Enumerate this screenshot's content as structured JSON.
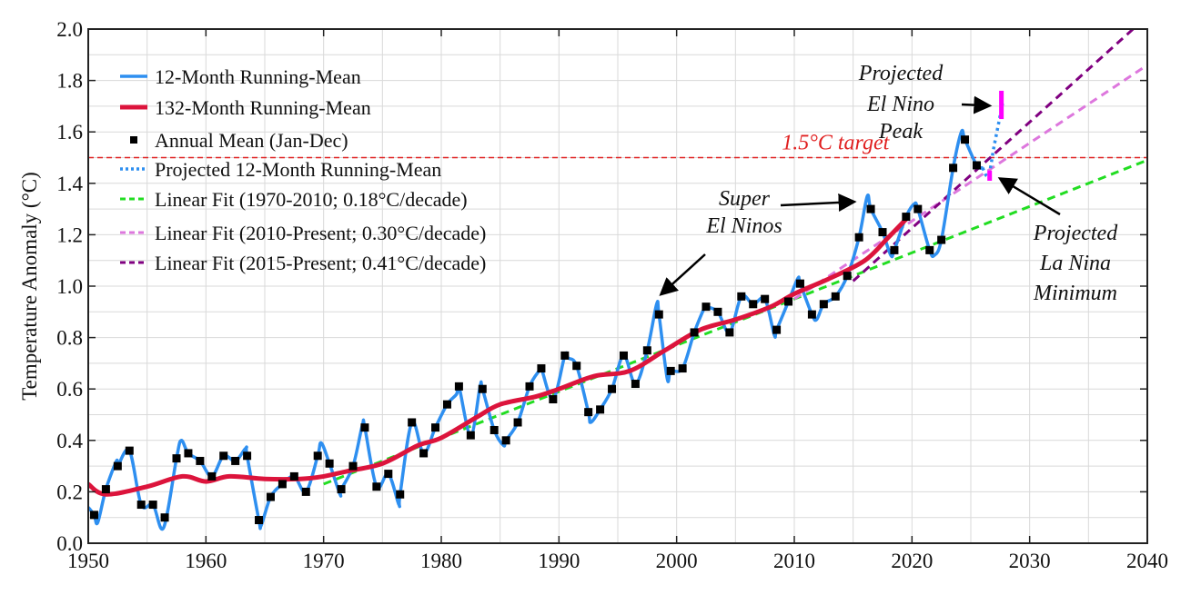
{
  "chart_data": {
    "type": "line",
    "title": "",
    "xlabel": "",
    "ylabel": "Temperature Anomaly (°C)",
    "xlim": [
      1950,
      2040
    ],
    "ylim": [
      0.0,
      2.0
    ],
    "xticks": [
      "1950",
      "1960",
      "1970",
      "1980",
      "1990",
      "2000",
      "2010",
      "2020",
      "2030",
      "2040"
    ],
    "yticks": [
      "0.0",
      "0.2",
      "0.4",
      "0.6",
      "0.8",
      "1.0",
      "1.2",
      "1.4",
      "1.6",
      "1.8",
      "2.0"
    ],
    "grid": true,
    "legend_placement": "top-left",
    "colors": {
      "running12": "#2e8ff0",
      "running132": "#dc143c",
      "annual": "#000000",
      "projected": "#2e8ff0",
      "fit1970": "#22dd22",
      "fit2010": "#dd77dd",
      "fit2015": "#800080",
      "target": "#e02020",
      "projection_bars": "#ff00ff"
    },
    "series": [
      {
        "name": "12-Month Running-Mean",
        "style": "solid",
        "x": [
          1950.0,
          1950.5,
          1950.8,
          1951.5,
          1952.4,
          1952.5,
          1953.5,
          1954.5,
          1955.5,
          1956.4,
          1957.5,
          1957.9,
          1958.5,
          1959.5,
          1960.5,
          1961.5,
          1962.5,
          1963.4,
          1963.5,
          1964.5,
          1964.7,
          1965.5,
          1966.5,
          1967.5,
          1968.5,
          1969.5,
          1969.8,
          1970.5,
          1971.4,
          1971.5,
          1972.5,
          1973.3,
          1973.5,
          1974.5,
          1975.5,
          1976.4,
          1976.5,
          1977.5,
          1978.5,
          1979.5,
          1980.5,
          1981.3,
          1981.5,
          1982.5,
          1983.3,
          1983.5,
          1984.5,
          1985.3,
          1985.5,
          1986.5,
          1987.5,
          1988.3,
          1988.5,
          1989.5,
          1990.5,
          1990.8,
          1991.5,
          1992.5,
          1992.7,
          1993.5,
          1994.5,
          1995.5,
          1996.5,
          1997.5,
          1998.3,
          1998.5,
          1999.2,
          1999.5,
          2000.5,
          2001.5,
          2002.4,
          2002.5,
          2003.5,
          2004.5,
          2005.5,
          2006.5,
          2007.5,
          2008.3,
          2008.5,
          2009.5,
          2010.3,
          2010.5,
          2011.5,
          2011.9,
          2012.5,
          2013.5,
          2014.5,
          2015.5,
          2016.2,
          2016.5,
          2017.5,
          2018.2,
          2018.5,
          2019.5,
          2020.2,
          2020.5,
          2021.5,
          2021.9,
          2022.5,
          2023.5,
          2024.2,
          2024.5,
          2025.5,
          2026.0
        ],
        "y": [
          0.14,
          0.11,
          0.08,
          0.21,
          0.32,
          0.3,
          0.36,
          0.15,
          0.15,
          0.06,
          0.33,
          0.4,
          0.35,
          0.32,
          0.26,
          0.34,
          0.32,
          0.37,
          0.34,
          0.09,
          0.07,
          0.18,
          0.23,
          0.26,
          0.2,
          0.34,
          0.39,
          0.31,
          0.19,
          0.21,
          0.3,
          0.46,
          0.45,
          0.22,
          0.27,
          0.15,
          0.19,
          0.47,
          0.35,
          0.45,
          0.54,
          0.58,
          0.61,
          0.42,
          0.61,
          0.6,
          0.44,
          0.38,
          0.4,
          0.47,
          0.61,
          0.67,
          0.68,
          0.56,
          0.73,
          0.72,
          0.69,
          0.51,
          0.47,
          0.52,
          0.6,
          0.73,
          0.62,
          0.75,
          0.93,
          0.89,
          0.64,
          0.67,
          0.68,
          0.82,
          0.92,
          0.92,
          0.9,
          0.82,
          0.96,
          0.93,
          0.95,
          0.81,
          0.83,
          0.94,
          1.03,
          1.01,
          0.89,
          0.87,
          0.93,
          0.96,
          1.04,
          1.19,
          1.35,
          1.3,
          1.21,
          1.12,
          1.14,
          1.27,
          1.32,
          1.3,
          1.14,
          1.12,
          1.18,
          1.46,
          1.6,
          1.57,
          1.47,
          1.46
        ]
      },
      {
        "name": "132-Month Running-Mean",
        "style": "solid",
        "x": [
          1950,
          1951.5,
          1955,
          1958,
          1960,
          1962,
          1965,
          1968,
          1970,
          1972,
          1975,
          1978,
          1980,
          1983,
          1985,
          1988,
          1990,
          1993,
          1996,
          1999,
          2002,
          2005,
          2008,
          2010,
          2013,
          2016,
          2018,
          2019.7
        ],
        "y": [
          0.23,
          0.19,
          0.22,
          0.26,
          0.24,
          0.26,
          0.25,
          0.25,
          0.26,
          0.28,
          0.31,
          0.38,
          0.41,
          0.49,
          0.54,
          0.57,
          0.6,
          0.65,
          0.67,
          0.75,
          0.83,
          0.87,
          0.92,
          0.97,
          1.03,
          1.1,
          1.19,
          1.27
        ]
      },
      {
        "name": "Annual Mean (Jan-Dec)",
        "style": "markers",
        "x": [
          1950,
          1951,
          1952,
          1953,
          1954,
          1955,
          1956,
          1957,
          1958,
          1959,
          1960,
          1961,
          1962,
          1963,
          1964,
          1965,
          1966,
          1967,
          1968,
          1969,
          1970,
          1971,
          1972,
          1973,
          1974,
          1975,
          1976,
          1977,
          1978,
          1979,
          1980,
          1981,
          1982,
          1983,
          1984,
          1985,
          1986,
          1987,
          1988,
          1989,
          1990,
          1991,
          1992,
          1993,
          1994,
          1995,
          1996,
          1997,
          1998,
          1999,
          2000,
          2001,
          2002,
          2003,
          2004,
          2005,
          2006,
          2007,
          2008,
          2009,
          2010,
          2011,
          2012,
          2013,
          2014,
          2015,
          2016,
          2017,
          2018,
          2019,
          2020,
          2021,
          2022,
          2023,
          2024,
          2025
        ],
        "y": [
          0.11,
          0.21,
          0.3,
          0.36,
          0.15,
          0.15,
          0.1,
          0.33,
          0.35,
          0.32,
          0.26,
          0.34,
          0.32,
          0.34,
          0.09,
          0.18,
          0.23,
          0.26,
          0.2,
          0.34,
          0.31,
          0.21,
          0.3,
          0.45,
          0.22,
          0.27,
          0.19,
          0.47,
          0.35,
          0.45,
          0.54,
          0.61,
          0.42,
          0.6,
          0.44,
          0.4,
          0.47,
          0.61,
          0.68,
          0.56,
          0.73,
          0.69,
          0.51,
          0.52,
          0.6,
          0.73,
          0.62,
          0.75,
          0.89,
          0.67,
          0.68,
          0.82,
          0.92,
          0.9,
          0.82,
          0.96,
          0.93,
          0.95,
          0.83,
          0.94,
          1.01,
          0.89,
          0.93,
          0.96,
          1.04,
          1.19,
          1.3,
          1.21,
          1.14,
          1.27,
          1.3,
          1.14,
          1.18,
          1.46,
          1.57,
          1.47
        ]
      },
      {
        "name": "Projected 12-Month Running-Mean",
        "style": "dotted",
        "x": [
          2026.0,
          2026.5,
          2027.0,
          2027.7
        ],
        "y": [
          1.46,
          1.43,
          1.55,
          1.71
        ]
      },
      {
        "name": "Linear Fit (1970-2010; 0.18°C/decade)",
        "style": "dashed",
        "x": [
          1970,
          2040
        ],
        "y": [
          0.23,
          1.49
        ]
      },
      {
        "name": "Linear Fit (2010-Present; 0.30°C/decade)",
        "style": "dashed",
        "x": [
          2010,
          2040
        ],
        "y": [
          0.95,
          1.86
        ]
      },
      {
        "name": "Linear Fit (2015-Present; 0.41°C/decade)",
        "style": "dashed",
        "x": [
          2015,
          2040
        ],
        "y": [
          1.02,
          2.05
        ]
      }
    ],
    "reference_line": {
      "y": 1.5,
      "label": "1.5°C target"
    },
    "projection_bars": [
      {
        "x": 2027.6,
        "y_low": 1.65,
        "y_high": 1.76
      },
      {
        "x": 2026.6,
        "y_low": 1.41,
        "y_high": 1.45
      }
    ],
    "annotations": [
      {
        "lines": [
          "Super",
          "El Ninos"
        ],
        "arrows_to": [
          [
            2016.0,
            1.33
          ],
          [
            1998.0,
            0.94
          ]
        ]
      },
      {
        "lines": [
          "Projected",
          "El Nino",
          "Peak"
        ],
        "arrows_to": [
          [
            2027.5,
            1.7
          ]
        ]
      },
      {
        "lines": [
          "Projected",
          "La Nina",
          "Minimum"
        ],
        "arrows_to": [
          [
            2026.7,
            1.44
          ]
        ]
      }
    ]
  }
}
